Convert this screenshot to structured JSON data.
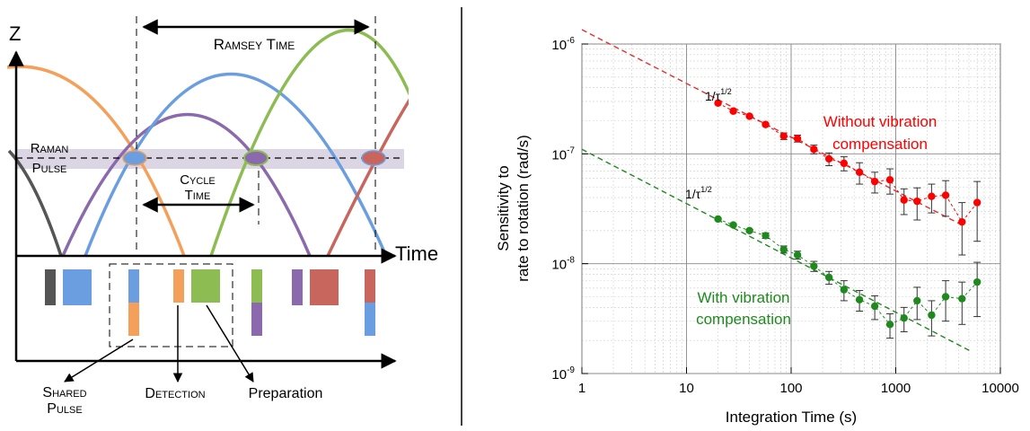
{
  "colors": {
    "orange": "#f4a05a",
    "purple": "#8a6aad",
    "blue": "#6a9ee0",
    "green": "#8cbc52",
    "red_brown": "#c8665e",
    "gray": "#555555",
    "band": "#d9d4e2",
    "series_red": "#ff0000",
    "series_red_fit": "#e03030",
    "series_green": "#1e8a1e",
    "series_green_fit": "#1e8a1e"
  },
  "diagram": {
    "z_label": "Z",
    "time_label": "Time",
    "ramsey_time": "Ramsey Time",
    "raman_line1": "Raman",
    "raman_line2": "Pulse",
    "cycle_line1": "Cycle",
    "cycle_line2": "Time",
    "shared_line1": "Shared",
    "shared_line2": "Pulse",
    "detection": "Detection",
    "preparation": "Preparation"
  },
  "chart_data": {
    "type": "scatter",
    "xlabel": "Integration Time (s)",
    "ylabel_line1": "Sensitivity to",
    "ylabel_line2": "rate to rotation (rad/s)",
    "xscale": "log",
    "yscale": "log",
    "xlim": [
      1,
      10000
    ],
    "ylim": [
      1e-09,
      1e-06
    ],
    "x_ticks": [
      "1",
      "10",
      "100",
      "1000",
      "10000"
    ],
    "y_ticks": [
      {
        "base": "10",
        "exp": "-9"
      },
      {
        "base": "10",
        "exp": "-8"
      },
      {
        "base": "10",
        "exp": "-7"
      },
      {
        "base": "10",
        "exp": "-6"
      }
    ],
    "grid": true,
    "annotations": [
      {
        "text": "1/τ",
        "sup": "1/2",
        "near": "red fit",
        "color": "#000000"
      },
      {
        "text": "1/τ",
        "sup": "1/2",
        "near": "green fit",
        "color": "#000000"
      }
    ],
    "series": [
      {
        "name_line1": "Without vibration",
        "name_line2": "compensation",
        "color": "#ff0000",
        "points": [
          {
            "x": 20,
            "y": 2.9e-07,
            "err": 2e-09
          },
          {
            "x": 28,
            "y": 2.45e-07,
            "err": 2e-09
          },
          {
            "x": 40,
            "y": 2.2e-07,
            "err": 2e-09
          },
          {
            "x": 57,
            "y": 1.85e-07,
            "err": 5e-09
          },
          {
            "x": 85,
            "y": 1.45e-07,
            "err": 1e-08
          },
          {
            "x": 115,
            "y": 1.38e-07,
            "err": 1e-08
          },
          {
            "x": 165,
            "y": 1.1e-07,
            "err": 1e-08
          },
          {
            "x": 230,
            "y": 9e-08,
            "err": 1.2e-08
          },
          {
            "x": 320,
            "y": 8.2e-08,
            "err": 1.2e-08
          },
          {
            "x": 450,
            "y": 6.8e-08,
            "err": 1.5e-08
          },
          {
            "x": 630,
            "y": 5.6e-08,
            "err": 1.2e-08
          },
          {
            "x": 880,
            "y": 5.8e-08,
            "err": 1.5e-08
          },
          {
            "x": 1200,
            "y": 3.8e-08,
            "err": 1e-08
          },
          {
            "x": 1600,
            "y": 3.7e-08,
            "err": 1.2e-08
          },
          {
            "x": 2200,
            "y": 4.1e-08,
            "err": 1.2e-08
          },
          {
            "x": 3000,
            "y": 4.2e-08,
            "err": 1.5e-08
          },
          {
            "x": 4300,
            "y": 2.4e-08,
            "err": 1.2e-08
          },
          {
            "x": 6000,
            "y": 3.6e-08,
            "err": 2e-08
          }
        ],
        "fit": {
          "x": [
            1,
            4500
          ],
          "y": [
            1.35e-06,
            2.2e-08
          ]
        }
      },
      {
        "name_line1": "With vibration",
        "name_line2": "compensation",
        "color": "#1e8a1e",
        "points": [
          {
            "x": 20,
            "y": 2.55e-08,
            "err": 5e-10
          },
          {
            "x": 28,
            "y": 2.25e-08,
            "err": 5e-10
          },
          {
            "x": 40,
            "y": 2e-08,
            "err": 5e-10
          },
          {
            "x": 57,
            "y": 1.8e-08,
            "err": 1e-09
          },
          {
            "x": 85,
            "y": 1.35e-08,
            "err": 1e-09
          },
          {
            "x": 115,
            "y": 1.2e-08,
            "err": 1e-09
          },
          {
            "x": 165,
            "y": 9.5e-09,
            "err": 1e-09
          },
          {
            "x": 230,
            "y": 7.5e-09,
            "err": 1e-09
          },
          {
            "x": 320,
            "y": 5.8e-09,
            "err": 1.2e-09
          },
          {
            "x": 450,
            "y": 4.7e-09,
            "err": 1e-09
          },
          {
            "x": 630,
            "y": 4.1e-09,
            "err": 1e-09
          },
          {
            "x": 880,
            "y": 2.8e-09,
            "err": 7e-10
          },
          {
            "x": 1200,
            "y": 3.2e-09,
            "err": 8e-10
          },
          {
            "x": 1600,
            "y": 4.6e-09,
            "err": 1.5e-09
          },
          {
            "x": 2200,
            "y": 3.4e-09,
            "err": 1.2e-09
          },
          {
            "x": 3000,
            "y": 5e-09,
            "err": 2e-09
          },
          {
            "x": 4300,
            "y": 4.8e-09,
            "err": 2e-09
          },
          {
            "x": 6000,
            "y": 6.8e-09,
            "err": 3.5e-09
          }
        ],
        "fit": {
          "x": [
            1,
            5200
          ],
          "y": [
            1.1e-07,
            1.6e-09
          ]
        }
      }
    ]
  }
}
